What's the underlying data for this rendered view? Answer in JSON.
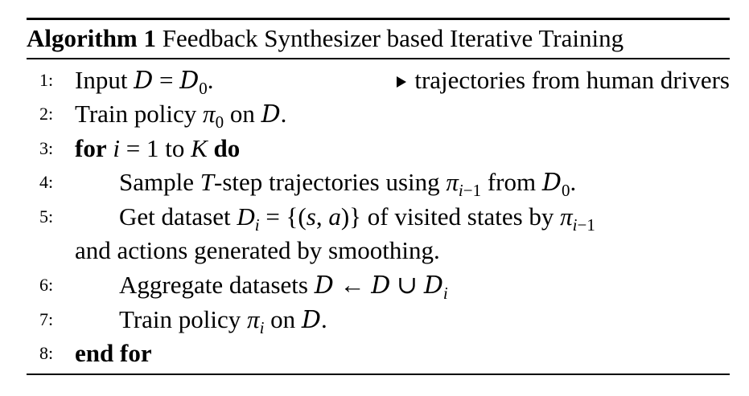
{
  "algorithm": {
    "label": "Algorithm 1",
    "title": "Feedback Synthesizer based Iterative Training"
  },
  "lines": [
    {
      "num": "1:",
      "text_pre": "Input ",
      "comment": "trajectories from human drivers"
    },
    {
      "num": "2:",
      "text_pre": "Train policy ",
      "text_mid": " on "
    },
    {
      "num": "3:",
      "kw_start": "for",
      "text_mid": " to ",
      "kw_end": "do"
    },
    {
      "num": "4:",
      "text_pre": "Sample ",
      "text_mid": "-step trajectories using ",
      "text_post": " from "
    },
    {
      "num": "5:",
      "text_pre": "Get dataset ",
      "text_mid": " of visited states by "
    },
    {
      "num": "",
      "text_pre": "and actions generated by smoothing."
    },
    {
      "num": "6:",
      "text_pre": "Aggregate datasets "
    },
    {
      "num": "7:",
      "text_pre": "Train policy ",
      "text_mid": " on "
    },
    {
      "num": "8:",
      "kw_start": "end for"
    }
  ],
  "colors": {
    "text": "#000000",
    "background": "#ffffff"
  }
}
